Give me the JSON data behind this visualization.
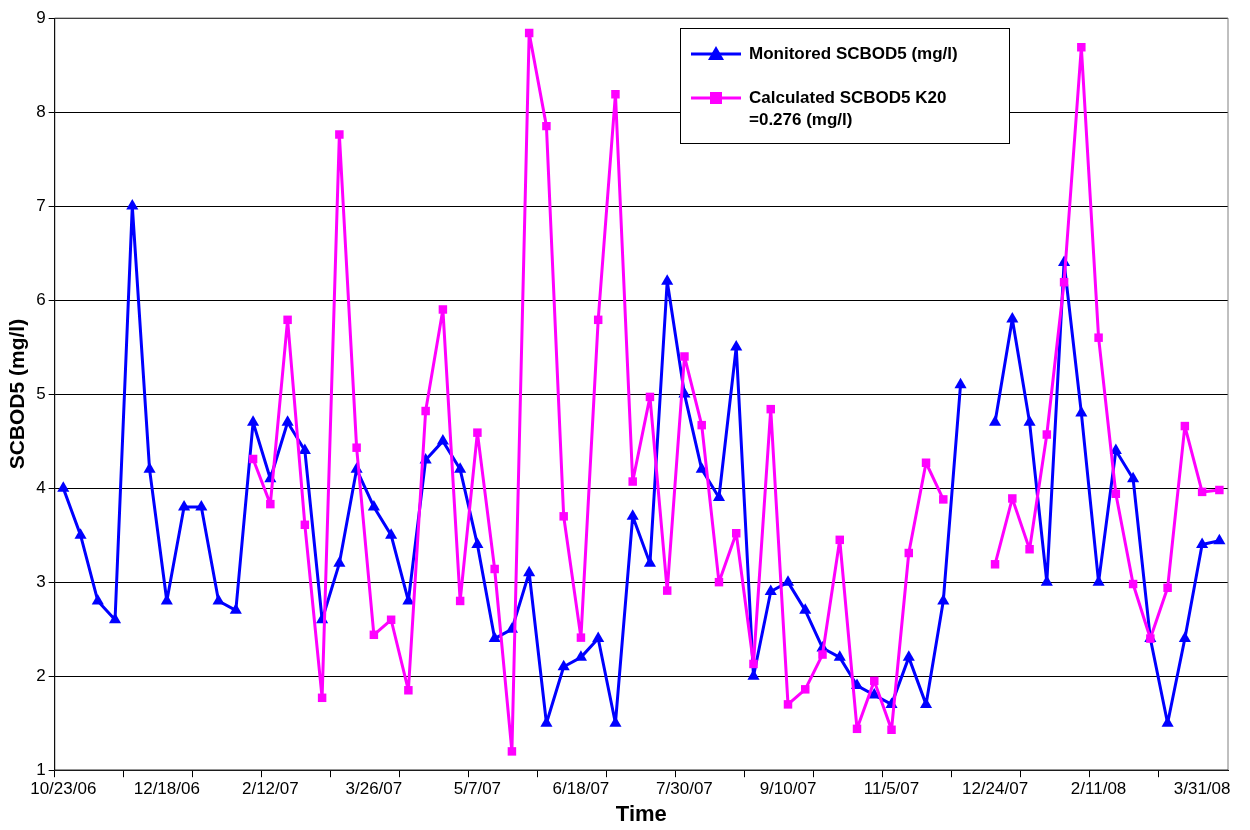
{
  "chart_data": {
    "type": "line",
    "xlabel": "Time",
    "ylabel": "SCBOD5 (mg/l)",
    "categories": [
      "10/23/06",
      null,
      null,
      null,
      null,
      null,
      "12/18/06",
      null,
      null,
      null,
      null,
      null,
      "2/12/07",
      null,
      null,
      null,
      null,
      null,
      "3/26/07",
      null,
      null,
      null,
      null,
      null,
      "5/7/07",
      null,
      null,
      null,
      null,
      null,
      "6/18/07",
      null,
      null,
      null,
      null,
      null,
      "7/30/07",
      null,
      null,
      null,
      null,
      null,
      "9/10/07",
      null,
      null,
      null,
      null,
      null,
      "11/5/07",
      null,
      null,
      null,
      null,
      null,
      "12/24/07",
      null,
      null,
      null,
      null,
      null,
      "2/11/08",
      null,
      null,
      null,
      null,
      null,
      "3/31/08",
      null
    ],
    "series": [
      {
        "name": "Monitored SCBOD5 (mg/l)",
        "color": "#0000ff",
        "marker": "triangle",
        "values": [
          4.0,
          3.5,
          2.8,
          2.6,
          7.0,
          4.2,
          2.8,
          3.8,
          3.8,
          2.8,
          2.7,
          4.7,
          4.1,
          4.7,
          4.4,
          2.6,
          3.2,
          4.2,
          3.8,
          3.5,
          2.8,
          4.3,
          4.5,
          4.2,
          3.4,
          2.4,
          2.5,
          3.1,
          1.5,
          2.1,
          2.2,
          2.4,
          1.5,
          3.7,
          3.2,
          6.2,
          5.0,
          4.2,
          3.9,
          5.5,
          2.0,
          2.9,
          3.0,
          2.7,
          2.3,
          2.2,
          1.9,
          1.8,
          1.7,
          2.2,
          1.7,
          2.8,
          5.1,
          null,
          4.7,
          5.8,
          4.7,
          3.0,
          6.4,
          4.8,
          3.0,
          4.4,
          4.1,
          2.4,
          1.5,
          2.4,
          3.4,
          3.44
        ]
      },
      {
        "name": "Calculated SCBOD5 K20 =0.276 (mg/l)",
        "color": "#ff00ff",
        "marker": "square",
        "values": [
          null,
          null,
          null,
          null,
          null,
          null,
          null,
          null,
          null,
          null,
          null,
          4.31,
          3.83,
          5.79,
          3.61,
          1.77,
          7.76,
          4.43,
          2.44,
          2.6,
          1.85,
          4.82,
          5.9,
          2.8,
          4.59,
          3.14,
          1.2,
          8.84,
          7.85,
          3.7,
          2.41,
          5.79,
          8.19,
          4.07,
          4.97,
          2.91,
          5.4,
          4.67,
          3.0,
          3.52,
          2.13,
          4.84,
          1.7,
          1.86,
          2.23,
          3.45,
          1.44,
          1.95,
          1.43,
          3.31,
          4.27,
          3.88,
          null,
          null,
          3.19,
          3.89,
          3.35,
          4.57,
          6.19,
          8.69,
          5.6,
          3.94,
          2.98,
          2.4,
          2.94,
          4.66,
          3.96,
          3.98
        ]
      }
    ],
    "ylim": [
      1,
      9
    ],
    "yticks": [
      1,
      2,
      3,
      4,
      5,
      6,
      7,
      8,
      9
    ],
    "grid": "y",
    "legend": "top right"
  }
}
